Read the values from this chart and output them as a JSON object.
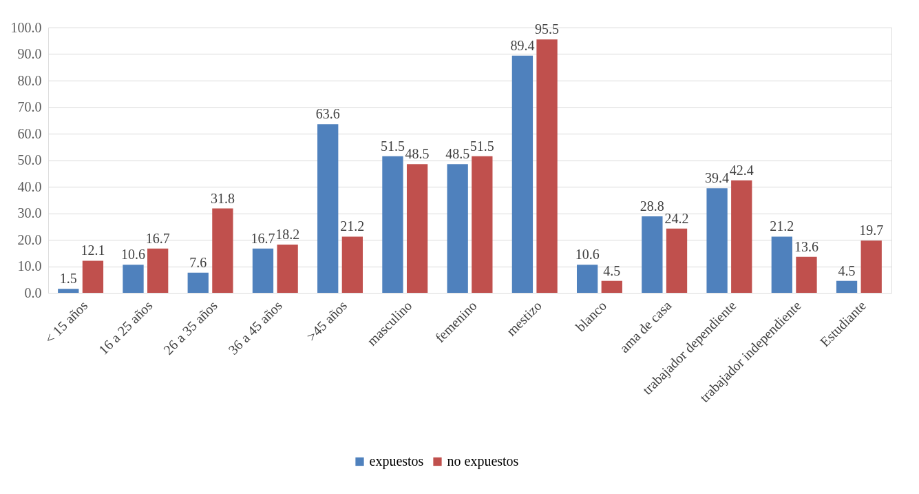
{
  "chart_data": {
    "type": "bar",
    "categories": [
      "< 15 años",
      "16 a 25 años",
      "26 a 35 años",
      "36 a 45 años",
      ">45 años",
      "masculino",
      "femenino",
      "mestizo",
      "blanco",
      "ama de casa",
      "trabajador dependiente",
      "trabajador independiente",
      "Estudiante"
    ],
    "series": [
      {
        "name": "expuestos",
        "color": "#4f81bd",
        "values": [
          1.5,
          10.6,
          7.6,
          16.7,
          63.6,
          51.5,
          48.5,
          89.4,
          10.6,
          28.8,
          39.4,
          21.2,
          4.5
        ]
      },
      {
        "name": "no expuestos",
        "color": "#c0504d",
        "values": [
          12.1,
          16.7,
          31.8,
          18.2,
          21.2,
          48.5,
          51.5,
          95.5,
          4.5,
          24.2,
          42.4,
          13.6,
          19.7
        ]
      }
    ],
    "ylim": [
      0,
      100
    ],
    "yticks": [
      {
        "value": 0,
        "label": "0.0"
      },
      {
        "value": 10,
        "label": "10.0"
      },
      {
        "value": 20,
        "label": "20.0"
      },
      {
        "value": 30,
        "label": "30.0"
      },
      {
        "value": 40,
        "label": "40.0"
      },
      {
        "value": 50,
        "label": "50.0"
      },
      {
        "value": 60,
        "label": "60.0"
      },
      {
        "value": 70,
        "label": "70.0"
      },
      {
        "value": 80,
        "label": "80.0"
      },
      {
        "value": 90,
        "label": "90.0"
      },
      {
        "value": 100,
        "label": "100.0"
      }
    ],
    "grid": "y",
    "legend": "bottom",
    "data_labels": true
  }
}
